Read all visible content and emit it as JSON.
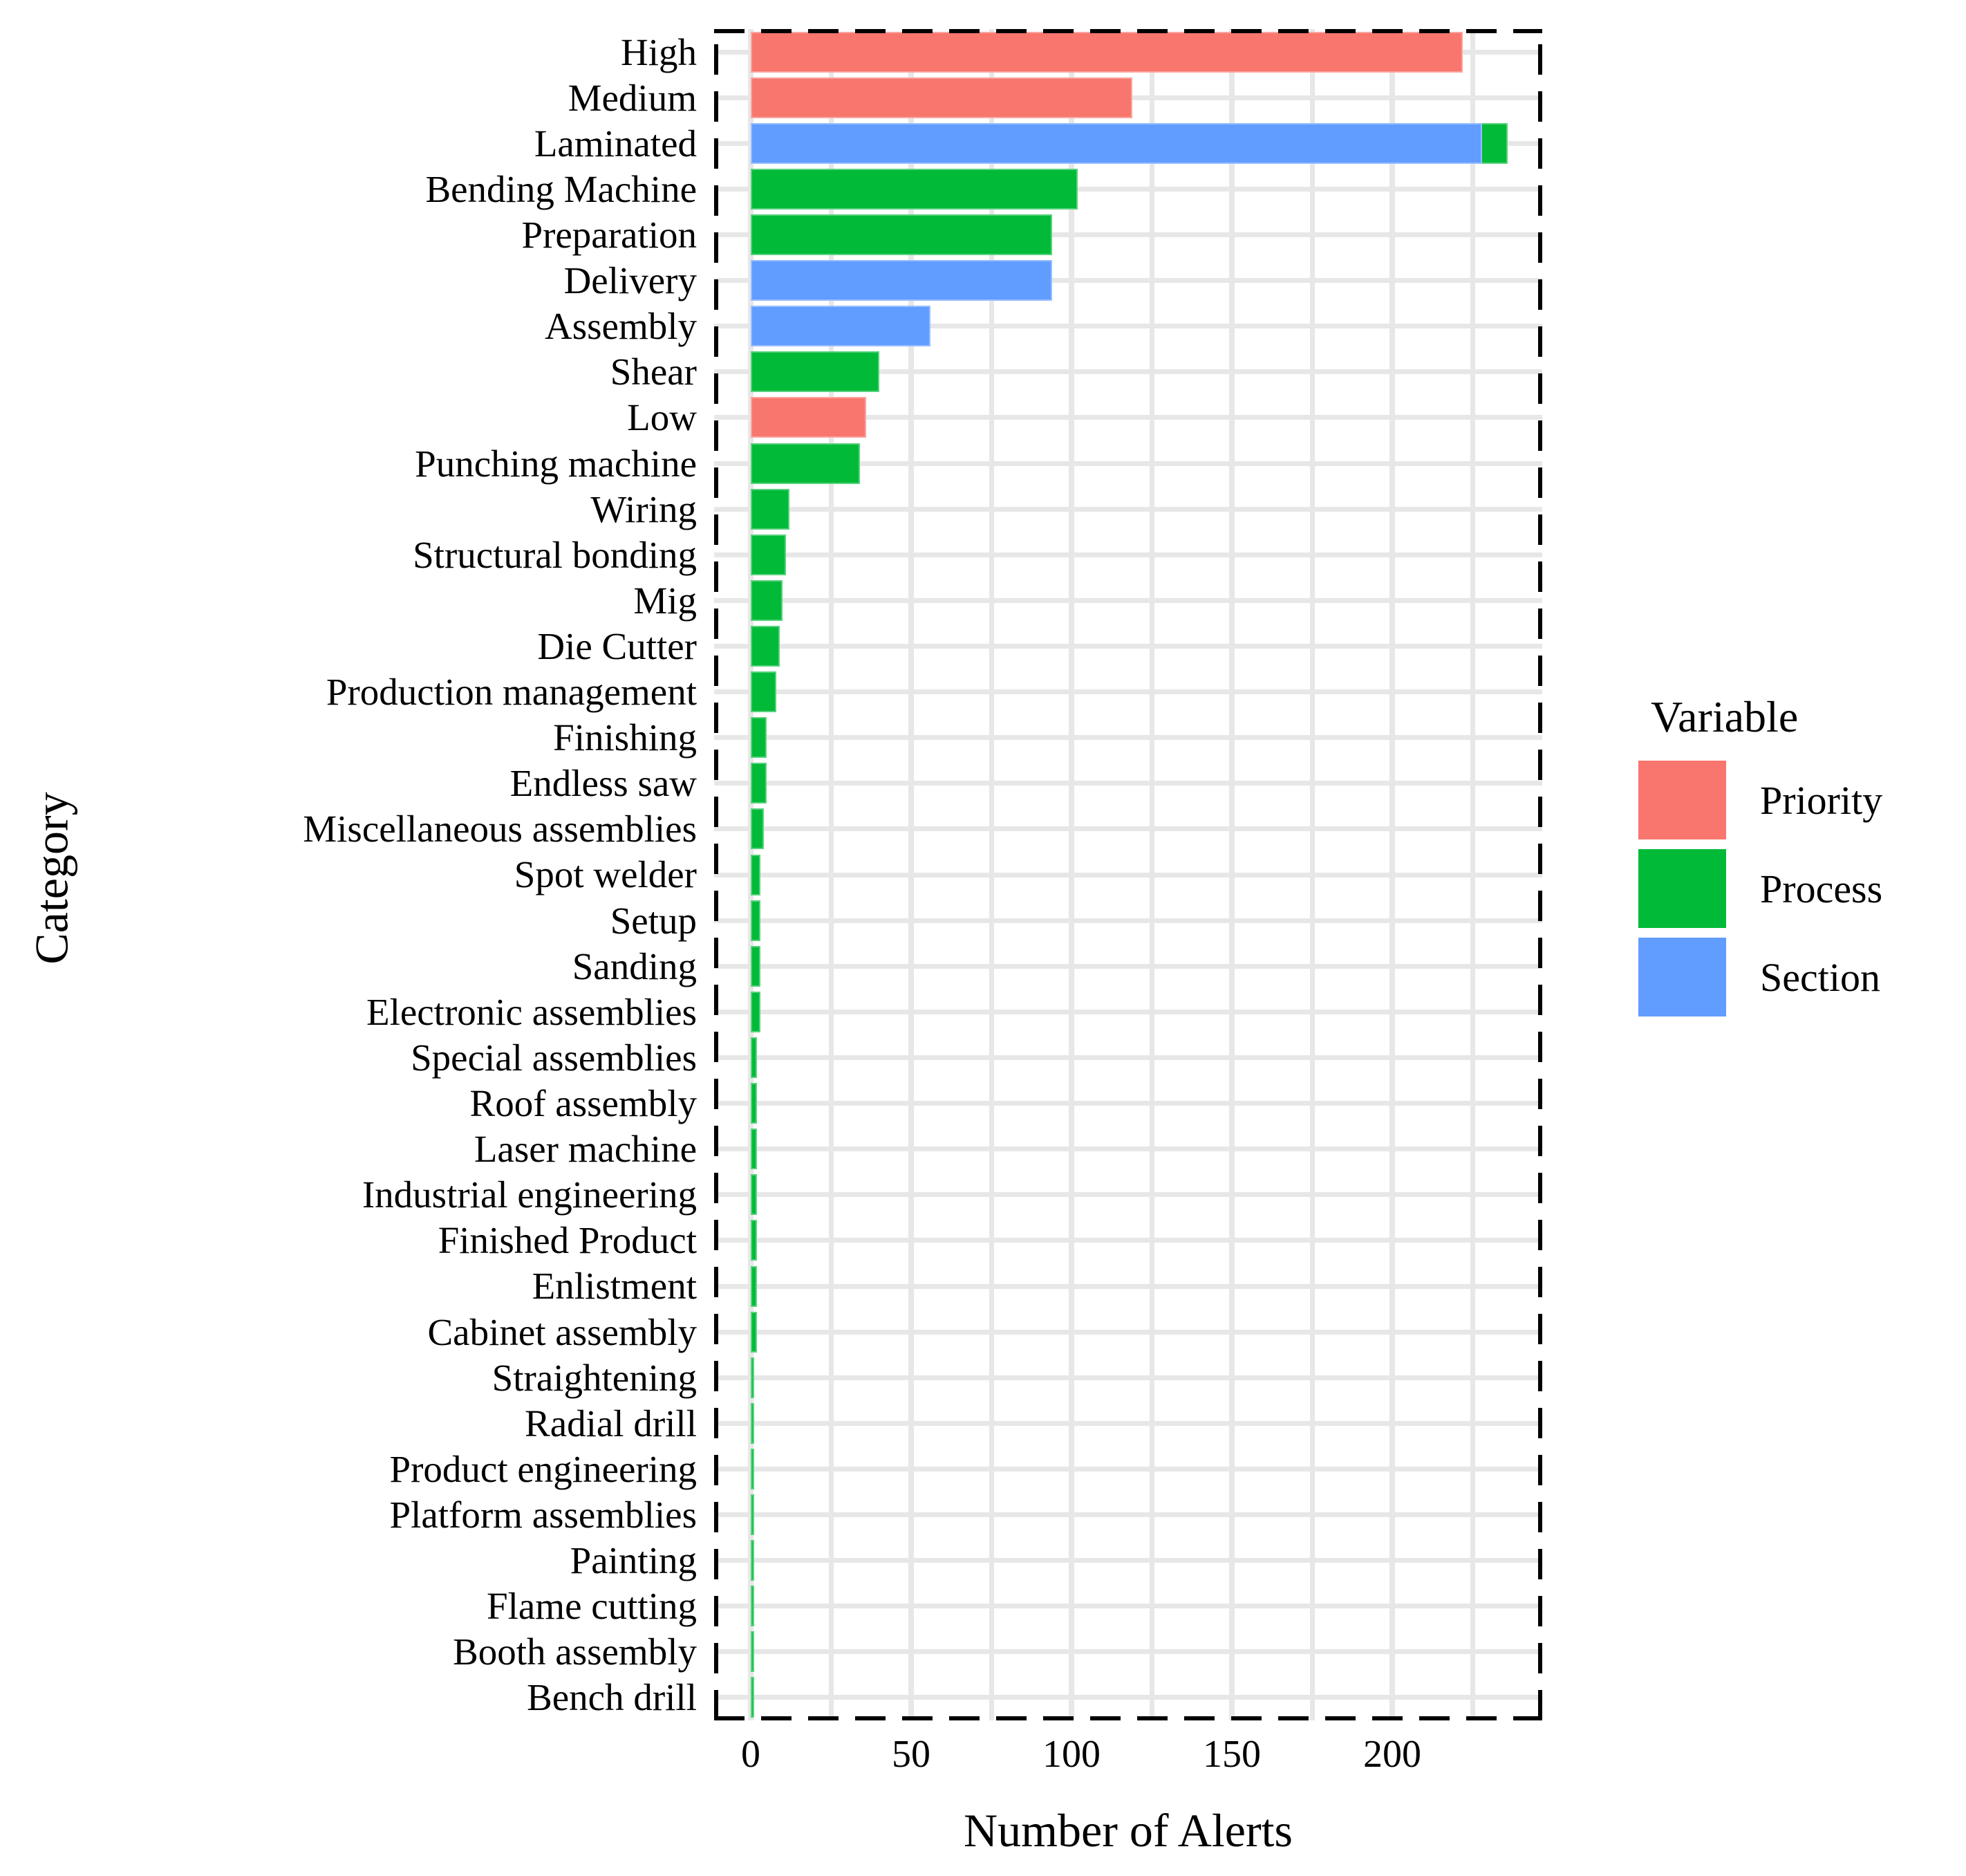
{
  "chart_data": {
    "type": "bar",
    "orientation": "horizontal",
    "title": "",
    "xlabel": "Number of Alerts",
    "ylabel": "Category",
    "x_ticks": [
      0,
      50,
      100,
      150,
      200
    ],
    "x_minor_ticks": [
      25,
      75,
      125,
      175,
      225
    ],
    "xlim": [
      0,
      247
    ],
    "grid": true,
    "panel_border": "dashed-black",
    "grid_color": "#E7E7E7",
    "legend": {
      "title": "Variable",
      "position": "right",
      "entries": [
        {
          "label": "Priority",
          "color": "#F8766D"
        },
        {
          "label": "Process",
          "color": "#00BA38"
        },
        {
          "label": "Section",
          "color": "#619CFF"
        }
      ]
    },
    "bars": [
      {
        "category": "High",
        "variable": "Priority",
        "value": 222
      },
      {
        "category": "Medium",
        "variable": "Priority",
        "value": 119
      },
      {
        "category": "Laminated",
        "variable": "Process",
        "value": 236
      },
      {
        "category": "Laminated",
        "variable": "Section",
        "value": 228
      },
      {
        "category": "Bending Machine",
        "variable": "Process",
        "value": 102
      },
      {
        "category": "Preparation",
        "variable": "Process",
        "value": 94
      },
      {
        "category": "Delivery",
        "variable": "Section",
        "value": 94
      },
      {
        "category": "Assembly",
        "variable": "Section",
        "value": 56
      },
      {
        "category": "Shear",
        "variable": "Process",
        "value": 40
      },
      {
        "category": "Low",
        "variable": "Priority",
        "value": 36
      },
      {
        "category": "Punching machine",
        "variable": "Process",
        "value": 34
      },
      {
        "category": "Wiring",
        "variable": "Process",
        "value": 12
      },
      {
        "category": "Structural bonding",
        "variable": "Process",
        "value": 11
      },
      {
        "category": "Mig",
        "variable": "Process",
        "value": 10
      },
      {
        "category": "Die Cutter",
        "variable": "Process",
        "value": 9
      },
      {
        "category": "Production management",
        "variable": "Process",
        "value": 8
      },
      {
        "category": "Finishing",
        "variable": "Process",
        "value": 5
      },
      {
        "category": "Endless saw",
        "variable": "Process",
        "value": 5
      },
      {
        "category": "Miscellaneous assemblies",
        "variable": "Process",
        "value": 4
      },
      {
        "category": "Spot welder",
        "variable": "Process",
        "value": 3
      },
      {
        "category": "Setup",
        "variable": "Process",
        "value": 3
      },
      {
        "category": "Sanding",
        "variable": "Process",
        "value": 3
      },
      {
        "category": "Electronic assemblies",
        "variable": "Process",
        "value": 3
      },
      {
        "category": "Special assemblies",
        "variable": "Process",
        "value": 2
      },
      {
        "category": "Roof assembly",
        "variable": "Process",
        "value": 2
      },
      {
        "category": "Laser machine",
        "variable": "Process",
        "value": 2
      },
      {
        "category": "Industrial engineering",
        "variable": "Process",
        "value": 2
      },
      {
        "category": "Finished Product",
        "variable": "Process",
        "value": 2
      },
      {
        "category": "Enlistment",
        "variable": "Process",
        "value": 2
      },
      {
        "category": "Cabinet assembly",
        "variable": "Process",
        "value": 2
      },
      {
        "category": "Straightening",
        "variable": "Process",
        "value": 1
      },
      {
        "category": "Radial drill",
        "variable": "Process",
        "value": 1
      },
      {
        "category": "Product engineering",
        "variable": "Process",
        "value": 1
      },
      {
        "category": "Platform assemblies",
        "variable": "Process",
        "value": 1
      },
      {
        "category": "Painting",
        "variable": "Process",
        "value": 1
      },
      {
        "category": "Flame cutting",
        "variable": "Process",
        "value": 1
      },
      {
        "category": "Booth assembly",
        "variable": "Process",
        "value": 1
      },
      {
        "category": "Bench drill",
        "variable": "Process",
        "value": 1
      }
    ]
  }
}
